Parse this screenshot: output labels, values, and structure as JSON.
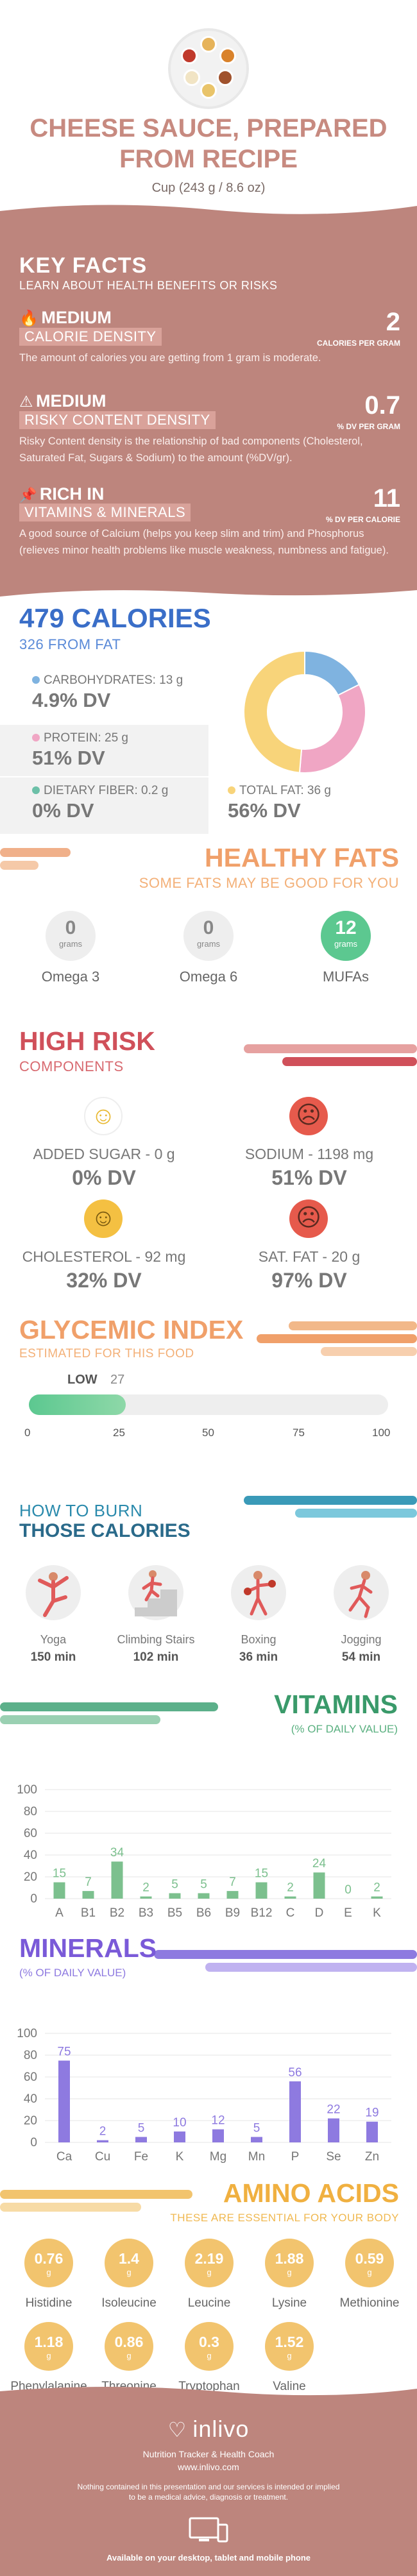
{
  "header": {
    "title_line1": "CHEESE SAUCE, PREPARED",
    "title_line2": "FROM RECIPE",
    "serving": "Cup (243 g / 8.6 oz)"
  },
  "key_facts": {
    "title": "KEY FACTS",
    "subtitle": "LEARN ABOUT HEALTH BENEFITS OR RISKS",
    "facts": [
      {
        "icon": "flame-icon",
        "level": "MEDIUM",
        "name": "CALORIE DENSITY",
        "value": "2",
        "unit": "CALORIES PER GRAM",
        "desc": "The amount of calories you are getting from 1 gram is moderate."
      },
      {
        "icon": "warning-icon",
        "level": "MEDIUM",
        "name": "RISKY CONTENT DENSITY",
        "value": "0.7",
        "unit": "% DV PER GRAM",
        "desc": "Risky Content density is the relationship of bad components (Cholesterol, Saturated Fat, Sugars & Sodium) to the amount (%DV/gr)."
      },
      {
        "icon": "pin-icon",
        "level": "RICH IN",
        "name": "VITAMINS & MINERALS",
        "value": "11",
        "unit": "% DV PER CALORIE",
        "desc": "A good source of Calcium (helps you keep slim and trim) and Phosphorus (relieves minor health problems like muscle weakness, numbness and fatigue)."
      }
    ]
  },
  "calories": {
    "total": "479 CALORIES",
    "from_fat": "326 FROM FAT",
    "macros": [
      {
        "label": "CARBOHYDRATES: 13 g",
        "dv": "4.9% DV",
        "color": "#7fb3e0"
      },
      {
        "label": "PROTEIN: 25 g",
        "dv": "51% DV",
        "color": "#f0a6c4"
      },
      {
        "label": "DIETARY FIBER: 0.2 g",
        "dv": "0% DV",
        "color": "#6cc0a8"
      },
      {
        "label": "TOTAL FAT: 36 g",
        "dv": "56% DV",
        "color": "#f8d47a"
      }
    ],
    "donut": [
      {
        "name": "carbohydrates",
        "value": 13,
        "color": "#7fb3e0"
      },
      {
        "name": "protein",
        "value": 25,
        "color": "#f0a6c4"
      },
      {
        "name": "total fat",
        "value": 36,
        "color": "#f8d47a"
      }
    ]
  },
  "healthy_fats": {
    "title": "HEALTHY FATS",
    "subtitle": "SOME FATS MAY BE GOOD FOR YOU",
    "items": [
      {
        "name": "Omega 3",
        "value": "0",
        "unit": "grams"
      },
      {
        "name": "Omega 6",
        "value": "0",
        "unit": "grams"
      },
      {
        "name": "MUFAs",
        "value": "12",
        "unit": "grams"
      }
    ]
  },
  "high_risk": {
    "title": "HIGH RISK",
    "subtitle": "COMPONENTS",
    "items": [
      {
        "label": "ADDED SUGAR - 0 g",
        "dv": "0% DV",
        "face": "happy-face-icon"
      },
      {
        "label": "SODIUM - 1198 mg",
        "dv": "51% DV",
        "face": "sad-face-icon"
      },
      {
        "label": "CHOLESTEROL - 92 mg",
        "dv": "32% DV",
        "face": "smile-face-icon"
      },
      {
        "label": "SAT. FAT - 20 g",
        "dv": "97% DV",
        "face": "sad-face-icon"
      }
    ]
  },
  "glycemic": {
    "title": "GLYCEMIC INDEX",
    "subtitle": "ESTIMATED FOR THIS FOOD",
    "level": "LOW",
    "value": "27",
    "value_num": 27,
    "ticks": [
      "0",
      "25",
      "50",
      "75",
      "100"
    ]
  },
  "burn": {
    "title_line1": "HOW TO BURN",
    "title_line2": "THOSE CALORIES",
    "activities": [
      {
        "name": "Yoga",
        "minutes": "150 min",
        "icon": "yoga-icon"
      },
      {
        "name": "Climbing Stairs",
        "minutes": "102 min",
        "icon": "stairs-icon"
      },
      {
        "name": "Boxing",
        "minutes": "36 min",
        "icon": "boxing-icon"
      },
      {
        "name": "Jogging",
        "minutes": "54 min",
        "icon": "jogging-icon"
      }
    ]
  },
  "chart_data": [
    {
      "type": "bar",
      "title": "VITAMINS",
      "subtitle": "(% OF DAILY VALUE)",
      "categories": [
        "A",
        "B1",
        "B2",
        "B3",
        "B5",
        "B6",
        "B9",
        "B12",
        "C",
        "D",
        "E",
        "K"
      ],
      "values": [
        15,
        7,
        34,
        2,
        5,
        5,
        7,
        15,
        2,
        24,
        0,
        2
      ],
      "value_labels": [
        "15",
        "7",
        "34",
        "2",
        "5",
        "5",
        "7",
        "15",
        "2",
        "24",
        "0",
        "2"
      ],
      "yticks": [
        "0",
        "20",
        "40",
        "60",
        "80",
        "100"
      ],
      "ylim": [
        0,
        100
      ],
      "grid": true,
      "color": "#7cc08e"
    },
    {
      "type": "bar",
      "title": "MINERALS",
      "subtitle": "(% OF DAILY VALUE)",
      "categories": [
        "Ca",
        "Cu",
        "Fe",
        "K",
        "Mg",
        "Mn",
        "P",
        "Se",
        "Zn"
      ],
      "values": [
        75,
        2,
        5,
        10,
        12,
        5,
        56,
        22,
        19
      ],
      "value_labels": [
        "75",
        "2",
        "5",
        "10",
        "12",
        "5",
        "56",
        "22",
        "19"
      ],
      "yticks": [
        "0",
        "20",
        "40",
        "60",
        "80",
        "100"
      ],
      "ylim": [
        0,
        100
      ],
      "grid": true,
      "color": "#8e7ae0"
    }
  ],
  "amino": {
    "title": "AMINO ACIDS",
    "subtitle": "THESE ARE ESSENTIAL FOR YOUR BODY",
    "unit": "g",
    "items": [
      {
        "name": "Histidine",
        "value": "0.76"
      },
      {
        "name": "Isoleucine",
        "value": "1.4"
      },
      {
        "name": "Leucine",
        "value": "2.19"
      },
      {
        "name": "Lysine",
        "value": "1.88"
      },
      {
        "name": "Methionine",
        "value": "0.59"
      },
      {
        "name": "Phenylalanine",
        "value": "1.18"
      },
      {
        "name": "Threonine",
        "value": "0.86"
      },
      {
        "name": "Tryptophan",
        "value": "0.3"
      },
      {
        "name": "Valine",
        "value": "1.52"
      }
    ]
  },
  "footer": {
    "brand": "inlivo",
    "tagline": "Nutrition Tracker & Health Coach",
    "url": "www.inlivo.com",
    "disclaimer_line1": "Nothing contained in this presentation and our services is intended or implied",
    "disclaimer_line2": "to be a medical advice, diagnosis or treatment.",
    "available": "Available on your desktop, tablet and mobile phone"
  }
}
